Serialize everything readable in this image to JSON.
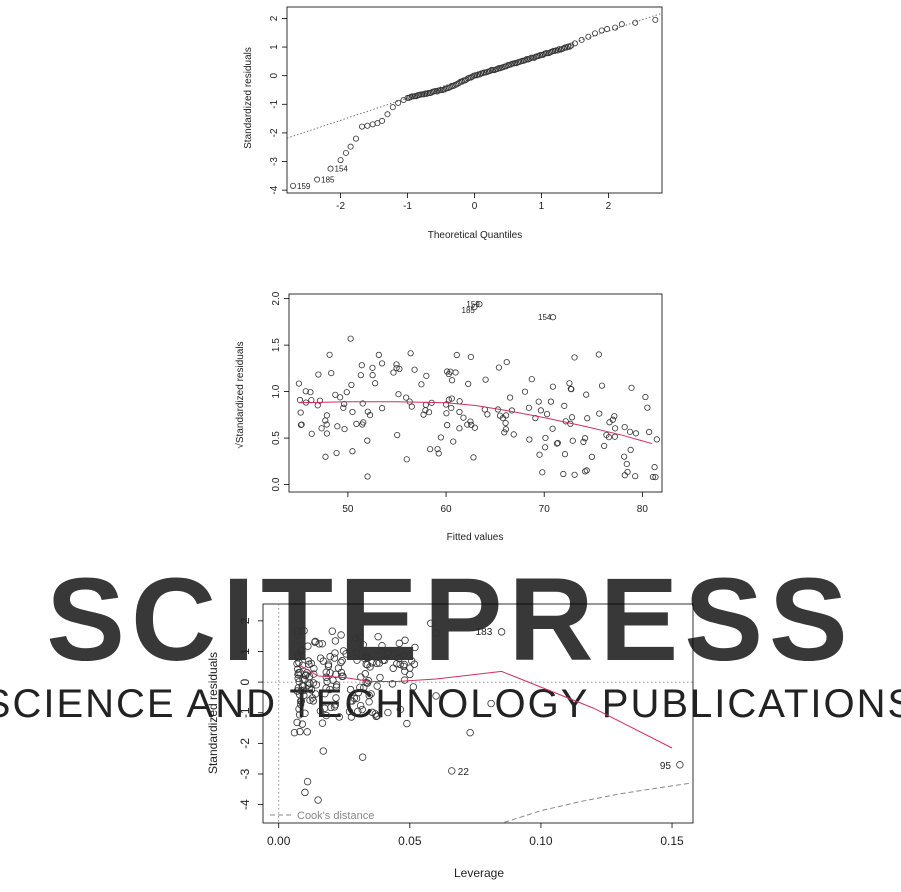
{
  "watermark": {
    "big": "SCITEPRESS",
    "small": "SCIENCE AND TECHNOLOGY PUBLICATIONS",
    "color": "#d8d8d8"
  },
  "colors": {
    "smooth": "#d0305a",
    "ref": "#555555",
    "cook": "#888888"
  },
  "chart_data": [
    {
      "type": "scatter",
      "xlabel": "Theoretical Quantiles",
      "ylabel": "Standardized residuals",
      "xticks": [
        "-2",
        "-1",
        "0",
        "1",
        "2"
      ],
      "yticks": [
        "-4",
        "-3",
        "-2",
        "-1",
        "0",
        "1",
        "2"
      ],
      "xlim": [
        -2.8,
        2.8
      ],
      "ylim": [
        -4.1,
        2.4
      ],
      "reference_line": {
        "slope": 0.78,
        "intercept": 0.0
      },
      "extreme_points": [
        {
          "label": "159",
          "x": -2.71,
          "y": -3.85
        },
        {
          "label": "185",
          "x": -2.35,
          "y": -3.63
        },
        {
          "label": "154",
          "x": -2.15,
          "y": -3.25
        }
      ],
      "upper_tail": [
        [
          1.5,
          1.13
        ],
        [
          1.6,
          1.25
        ],
        [
          1.7,
          1.36
        ],
        [
          1.8,
          1.48
        ],
        [
          1.9,
          1.58
        ],
        [
          1.98,
          1.63
        ],
        [
          2.1,
          1.68
        ],
        [
          2.2,
          1.8
        ],
        [
          2.4,
          1.85
        ],
        [
          2.7,
          1.95
        ]
      ]
    },
    {
      "type": "scatter",
      "xlabel": "Fitted values",
      "ylabel": "√Standardized residuals",
      "xticks": [
        "50",
        "60",
        "70",
        "80"
      ],
      "yticks": [
        "0.0",
        "0.5",
        "1.0",
        "1.5",
        "2.0"
      ],
      "xlim": [
        44,
        82
      ],
      "ylim": [
        -0.08,
        2.05
      ],
      "labeled_points": [
        {
          "label": "159",
          "x": 63.4,
          "y": 1.94
        },
        {
          "label": "185",
          "x": 62.9,
          "y": 1.91
        },
        {
          "label": "154",
          "x": 70.9,
          "y": 1.8
        }
      ],
      "smooth": [
        [
          45,
          0.88
        ],
        [
          50,
          0.89
        ],
        [
          55,
          0.89
        ],
        [
          60,
          0.88
        ],
        [
          63,
          0.85
        ],
        [
          66,
          0.8
        ],
        [
          70,
          0.72
        ],
        [
          74,
          0.63
        ],
        [
          78,
          0.53
        ],
        [
          81,
          0.44
        ]
      ]
    },
    {
      "type": "scatter",
      "xlabel": "Leverage",
      "ylabel": "Standardized residuals",
      "xticks": [
        "0.00",
        "0.05",
        "0.10",
        "0.15"
      ],
      "yticks": [
        "-4",
        "-3",
        "-2",
        "-1",
        "0",
        "1",
        "2"
      ],
      "xlim": [
        -0.006,
        0.158
      ],
      "ylim": [
        -4.6,
        2.55
      ],
      "legend": "Cook's distance",
      "legend_position": "bottom-left",
      "labeled_points": [
        {
          "label": "183",
          "x": 0.085,
          "y": 1.64
        },
        {
          "label": "22",
          "x": 0.066,
          "y": -2.9
        },
        {
          "label": "95",
          "x": 0.153,
          "y": -2.7
        }
      ],
      "smooth": [
        [
          0.008,
          0.55
        ],
        [
          0.015,
          0.2
        ],
        [
          0.025,
          0.15
        ],
        [
          0.035,
          0.02
        ],
        [
          0.045,
          0.02
        ],
        [
          0.06,
          0.1
        ],
        [
          0.085,
          0.35
        ],
        [
          0.12,
          -0.85
        ],
        [
          0.15,
          -2.15
        ]
      ],
      "cook_curve": [
        [
          0.086,
          -4.58
        ],
        [
          0.1,
          -4.2
        ],
        [
          0.115,
          -3.9
        ],
        [
          0.13,
          -3.65
        ],
        [
          0.145,
          -3.45
        ],
        [
          0.157,
          -3.3
        ]
      ]
    }
  ]
}
